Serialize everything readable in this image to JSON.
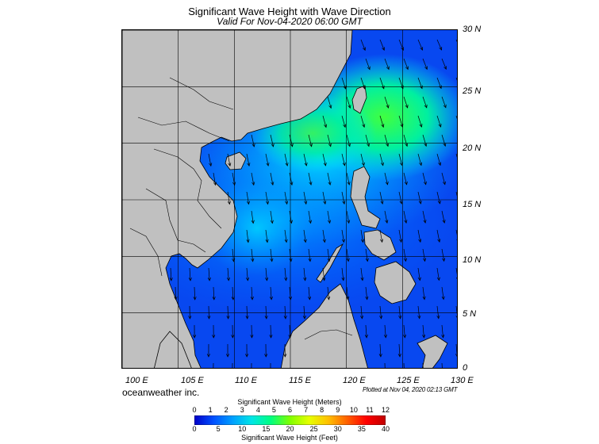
{
  "header": {
    "title": "Significant Wave Height with Wave Direction",
    "subtitle": "Valid For Nov-04-2020 06:00 GMT"
  },
  "map": {
    "lat_labels": [
      "30 N",
      "25 N",
      "20 N",
      "15 N",
      "10 N",
      "5 N",
      "0"
    ],
    "lon_labels": [
      "100 E",
      "105 E",
      "110 E",
      "115 E",
      "120 E",
      "125 E",
      "130 E"
    ],
    "lat_range": [
      0,
      30
    ],
    "lon_range": [
      100,
      130
    ],
    "land_color": "#c0c0c0",
    "arrow_color": "#000000"
  },
  "footer": {
    "brand": "oceanweather inc.",
    "plotted": "Plotted at Nov 04, 2020 02:13 GMT"
  },
  "legend": {
    "meters_title": "Significant Wave Height (Meters)",
    "meters_ticks": [
      "0",
      "1",
      "2",
      "3",
      "4",
      "5",
      "6",
      "7",
      "8",
      "9",
      "10",
      "11",
      "12"
    ],
    "feet_title": "Significant Wave Height (Feet)",
    "feet_ticks": [
      "0",
      "5",
      "10",
      "15",
      "20",
      "25",
      "30",
      "35",
      "40"
    ],
    "colors": [
      "#0000c8",
      "#0050ff",
      "#00a0ff",
      "#00e6e6",
      "#00ff80",
      "#80ff00",
      "#e6ff00",
      "#ffc000",
      "#ff6000",
      "#ff0000",
      "#c00000"
    ]
  }
}
